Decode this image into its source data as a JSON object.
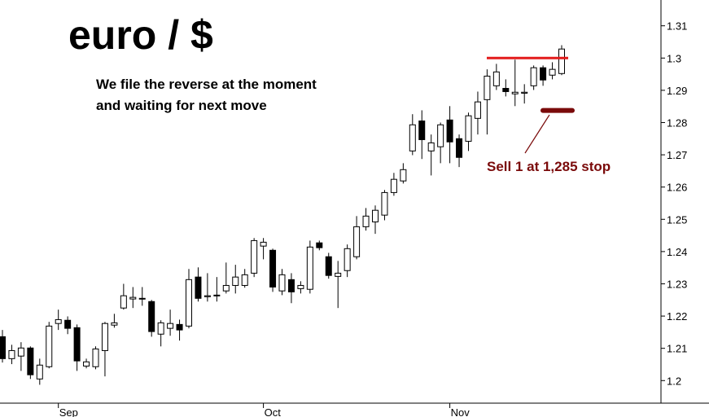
{
  "chart_data": {
    "type": "candlestick",
    "title": "euro / $",
    "annotations": [
      "We file the reverse at the moment",
      "and waiting for next move"
    ],
    "categories": [
      null,
      null,
      null,
      null,
      null,
      null,
      "Sep",
      null,
      null,
      null,
      null,
      null,
      null,
      null,
      null,
      null,
      null,
      null,
      null,
      null,
      null,
      null,
      null,
      null,
      null,
      null,
      null,
      null,
      "Oct",
      null,
      null,
      null,
      null,
      null,
      null,
      null,
      null,
      null,
      null,
      null,
      null,
      null,
      null,
      null,
      null,
      null,
      null,
      null,
      "Nov",
      null,
      null,
      null,
      null,
      null,
      null,
      null,
      null,
      null,
      null,
      null,
      null
    ],
    "open": [
      1.2136,
      1.2068,
      1.2076,
      1.2101,
      1.2005,
      1.2043,
      1.2177,
      1.2187,
      1.2164,
      1.2045,
      1.2043,
      1.2093,
      1.2172,
      1.2225,
      1.2253,
      1.2253,
      1.2245,
      1.2144,
      1.2162,
      1.2174,
      1.2169,
      1.2321,
      1.226,
      1.2263,
      1.2278,
      1.2295,
      1.2295,
      1.2333,
      1.2417,
      1.2404,
      1.2278,
      1.2313,
      1.2285,
      1.2283,
      1.2427,
      1.2384,
      1.2323,
      1.2341,
      1.2384,
      1.2477,
      1.2492,
      1.2513,
      1.2583,
      1.2619,
      1.2712,
      1.2805,
      1.2712,
      1.2725,
      1.2808,
      1.275,
      1.2742,
      1.2813,
      1.2871,
      1.2914,
      1.2906,
      1.2889,
      1.2891,
      1.2914,
      1.297,
      1.2947,
      1.2952
    ],
    "high": [
      1.2157,
      1.2111,
      1.2119,
      1.2106,
      1.2068,
      1.2182,
      1.222,
      1.2199,
      1.2174,
      1.2068,
      1.2106,
      1.2182,
      1.2207,
      1.23,
      1.229,
      1.229,
      1.225,
      1.2187,
      1.222,
      1.2189,
      1.2346,
      1.2351,
      1.2333,
      1.2321,
      1.2366,
      1.2359,
      1.2346,
      1.2442,
      1.2442,
      1.2409,
      1.2346,
      1.2333,
      1.2308,
      1.2434,
      1.2434,
      1.2396,
      1.2371,
      1.2422,
      1.251,
      1.2535,
      1.2543,
      1.2591,
      1.2644,
      1.2674,
      1.2826,
      1.2838,
      1.2763,
      1.28,
      1.2851,
      1.2763,
      1.2831,
      1.2896,
      1.2965,
      1.2982,
      1.2934,
      1.2995,
      1.2919,
      1.2977,
      1.2977,
      1.2987,
      1.304
    ],
    "low": [
      1.2056,
      1.2051,
      1.203,
      1.2005,
      1.1987,
      1.2038,
      1.2157,
      1.2144,
      1.203,
      1.2038,
      1.2035,
      1.2013,
      1.2164,
      1.222,
      1.2225,
      1.2232,
      1.2136,
      1.2106,
      1.2139,
      1.2124,
      1.2162,
      1.2245,
      1.2245,
      1.2245,
      1.227,
      1.227,
      1.2288,
      1.2321,
      1.2376,
      1.2275,
      1.2265,
      1.224,
      1.227,
      1.227,
      1.2404,
      1.2316,
      1.2225,
      1.2321,
      1.2376,
      1.2465,
      1.2455,
      1.2497,
      1.2573,
      1.2611,
      1.2699,
      1.2687,
      1.2636,
      1.2674,
      1.2674,
      1.2662,
      1.2712,
      1.2763,
      1.2763,
      1.2901,
      1.2881,
      1.2851,
      1.2859,
      1.2901,
      1.2914,
      1.2934,
      1.2947
    ],
    "close": [
      1.2068,
      1.2093,
      1.2101,
      1.2018,
      1.2048,
      1.2169,
      1.2189,
      1.2162,
      1.2061,
      1.2058,
      1.2098,
      1.2177,
      1.2179,
      1.2263,
      1.2258,
      1.2255,
      1.2152,
      1.2179,
      1.2177,
      1.2157,
      1.2313,
      1.2255,
      1.2263,
      1.2265,
      1.2295,
      1.2321,
      1.2328,
      1.2434,
      1.2429,
      1.229,
      1.2328,
      1.2275,
      1.2295,
      1.2414,
      1.2412,
      1.2326,
      1.2333,
      1.2409,
      1.2477,
      1.251,
      1.2528,
      1.2583,
      1.2624,
      1.2654,
      1.2793,
      1.2747,
      1.2737,
      1.2793,
      1.274,
      1.2692,
      1.2821,
      1.2864,
      1.2944,
      1.2957,
      1.2896,
      1.2894,
      1.2894,
      1.297,
      1.2932,
      1.2965,
      1.3028
    ],
    "up_color": "#ffffff",
    "down_color": "#000000",
    "ylim": [
      1.193,
      1.318
    ],
    "yticks": [
      1.2,
      1.21,
      1.22,
      1.23,
      1.24,
      1.25,
      1.26,
      1.27,
      1.28,
      1.29,
      1.3,
      1.31
    ],
    "lines": [
      {
        "value": 1.3,
        "color": "#e31b1b"
      }
    ],
    "stop": {
      "value": 1.285,
      "label": "Sell 1 at 1,285 stop",
      "color": "#7a0a0a"
    }
  }
}
